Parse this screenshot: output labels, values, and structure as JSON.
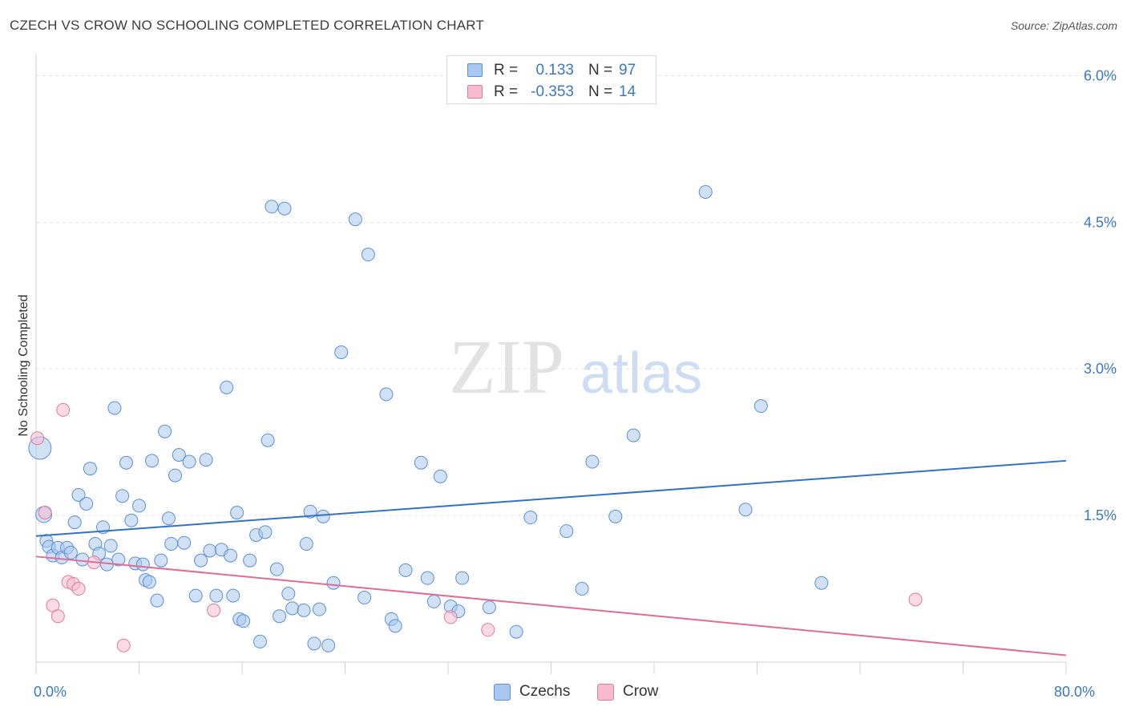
{
  "title": "CZECH VS CROW NO SCHOOLING COMPLETED CORRELATION CHART",
  "source": "Source: ZipAtlas.com",
  "watermark": {
    "zip": "ZIP",
    "atlas": "atlas"
  },
  "legend": {
    "rows": [
      {
        "series": "Czechs",
        "r_label": "R =",
        "r_value": "0.133",
        "n_label": "N =",
        "n_value": "97",
        "color": "#a9c8ef",
        "stroke": "#5b8fd6"
      },
      {
        "series": "Crow",
        "r_label": "R =",
        "r_value": "-0.353",
        "n_label": "N =",
        "n_value": "14",
        "color": "#f6bccd",
        "stroke": "#e07a9a"
      }
    ]
  },
  "chart_data": {
    "type": "scatter",
    "title": "CZECH VS CROW NO SCHOOLING COMPLETED CORRELATION CHART",
    "xlabel": "",
    "ylabel": "No Schooling Completed",
    "xlim": [
      0,
      80
    ],
    "ylim": [
      0,
      6.2
    ],
    "x_tick_labels": [
      {
        "value": 0,
        "label": "0.0%"
      },
      {
        "value": 80,
        "label": "80.0%"
      }
    ],
    "y_tick_labels": [
      {
        "value": 1.5,
        "label": "1.5%"
      },
      {
        "value": 3.0,
        "label": "3.0%"
      },
      {
        "value": 4.5,
        "label": "4.5%"
      },
      {
        "value": 6.0,
        "label": "6.0%"
      }
    ],
    "grid": true,
    "legend_position": "top-center",
    "series": [
      {
        "name": "Czechs",
        "color": "#a9c8ef",
        "stroke": "#5b8fd6",
        "trend": {
          "x": [
            0,
            80
          ],
          "y": [
            1.29,
            2.06
          ],
          "color": "#2f72c8"
        },
        "points": [
          [
            0.3,
            2.19,
            14
          ],
          [
            0.6,
            1.51,
            10
          ],
          [
            0.8,
            1.24,
            8
          ],
          [
            1.0,
            1.18,
            8
          ],
          [
            1.3,
            1.09,
            8
          ],
          [
            1.7,
            1.17,
            8
          ],
          [
            2.0,
            1.07,
            8
          ],
          [
            2.4,
            1.17,
            8
          ],
          [
            2.7,
            1.12,
            8
          ],
          [
            3.0,
            1.43,
            8
          ],
          [
            3.3,
            1.71,
            8
          ],
          [
            3.6,
            1.05,
            8
          ],
          [
            3.9,
            1.62,
            8
          ],
          [
            4.2,
            1.98,
            8
          ],
          [
            4.6,
            1.21,
            8
          ],
          [
            4.9,
            1.11,
            8
          ],
          [
            5.2,
            1.38,
            8
          ],
          [
            5.5,
            1.0,
            8
          ],
          [
            5.8,
            1.19,
            8
          ],
          [
            6.1,
            2.6,
            8
          ],
          [
            6.4,
            1.05,
            8
          ],
          [
            6.7,
            1.7,
            8
          ],
          [
            7.0,
            2.04,
            8
          ],
          [
            7.4,
            1.45,
            8
          ],
          [
            7.7,
            1.01,
            8
          ],
          [
            8.0,
            1.6,
            8
          ],
          [
            8.3,
            1.0,
            8
          ],
          [
            8.5,
            0.84,
            8
          ],
          [
            8.8,
            0.82,
            8
          ],
          [
            9.0,
            2.06,
            8
          ],
          [
            9.4,
            0.63,
            8
          ],
          [
            9.7,
            1.04,
            8
          ],
          [
            10.0,
            2.36,
            8
          ],
          [
            10.3,
            1.47,
            8
          ],
          [
            10.5,
            1.21,
            8
          ],
          [
            10.8,
            1.91,
            8
          ],
          [
            11.1,
            2.12,
            8
          ],
          [
            11.5,
            1.22,
            8
          ],
          [
            11.9,
            2.05,
            8
          ],
          [
            12.4,
            0.68,
            8
          ],
          [
            12.8,
            1.04,
            8
          ],
          [
            13.2,
            2.07,
            8
          ],
          [
            13.5,
            1.14,
            8
          ],
          [
            14.0,
            0.68,
            8
          ],
          [
            14.4,
            1.15,
            8
          ],
          [
            14.8,
            2.81,
            8
          ],
          [
            15.1,
            1.09,
            8
          ],
          [
            15.3,
            0.68,
            8
          ],
          [
            15.6,
            1.53,
            8
          ],
          [
            15.8,
            0.44,
            8
          ],
          [
            16.1,
            0.42,
            8
          ],
          [
            16.6,
            1.04,
            8
          ],
          [
            17.1,
            1.3,
            8
          ],
          [
            17.4,
            0.21,
            8
          ],
          [
            17.8,
            1.33,
            8
          ],
          [
            18.0,
            2.27,
            8
          ],
          [
            18.3,
            4.66,
            8
          ],
          [
            18.7,
            0.95,
            8
          ],
          [
            18.9,
            0.47,
            8
          ],
          [
            19.3,
            4.64,
            8
          ],
          [
            19.6,
            0.7,
            8
          ],
          [
            19.9,
            0.55,
            8
          ],
          [
            20.8,
            0.53,
            8
          ],
          [
            21.0,
            1.21,
            8
          ],
          [
            21.3,
            1.54,
            8
          ],
          [
            21.6,
            0.19,
            8
          ],
          [
            22.0,
            0.54,
            8
          ],
          [
            22.3,
            1.49,
            8
          ],
          [
            22.7,
            0.17,
            8
          ],
          [
            23.1,
            0.81,
            8
          ],
          [
            23.7,
            3.17,
            8
          ],
          [
            24.8,
            4.53,
            8
          ],
          [
            25.5,
            0.66,
            8
          ],
          [
            25.8,
            4.17,
            8
          ],
          [
            27.2,
            2.74,
            8
          ],
          [
            27.6,
            0.44,
            8
          ],
          [
            27.9,
            0.37,
            8
          ],
          [
            28.7,
            0.94,
            8
          ],
          [
            29.9,
            2.04,
            8
          ],
          [
            30.4,
            0.86,
            8
          ],
          [
            30.9,
            0.62,
            8
          ],
          [
            31.4,
            1.9,
            8
          ],
          [
            32.2,
            0.57,
            8
          ],
          [
            32.8,
            0.52,
            8
          ],
          [
            33.1,
            0.86,
            8
          ],
          [
            35.2,
            0.56,
            8
          ],
          [
            37.3,
            0.31,
            8
          ],
          [
            38.4,
            1.48,
            8
          ],
          [
            41.2,
            1.34,
            8
          ],
          [
            42.4,
            0.75,
            8
          ],
          [
            43.2,
            2.05,
            8
          ],
          [
            45.0,
            1.49,
            8
          ],
          [
            46.4,
            2.32,
            8
          ],
          [
            52.0,
            4.81,
            8
          ],
          [
            55.1,
            1.56,
            8
          ],
          [
            56.3,
            2.62,
            8
          ],
          [
            61.0,
            0.81,
            8
          ]
        ]
      },
      {
        "name": "Crow",
        "color": "#f6bccd",
        "stroke": "#e07a9a",
        "trend": {
          "x": [
            0,
            80
          ],
          "y": [
            1.08,
            0.07
          ],
          "color": "#e06c94"
        },
        "points": [
          [
            0.1,
            2.29,
            8
          ],
          [
            0.7,
            1.53,
            8
          ],
          [
            1.3,
            0.58,
            8
          ],
          [
            1.7,
            0.47,
            8
          ],
          [
            2.1,
            2.58,
            8
          ],
          [
            2.5,
            0.82,
            8
          ],
          [
            2.9,
            0.8,
            8
          ],
          [
            3.3,
            0.75,
            8
          ],
          [
            4.5,
            1.02,
            8
          ],
          [
            6.8,
            0.17,
            8
          ],
          [
            13.8,
            0.53,
            8
          ],
          [
            32.2,
            0.46,
            8
          ],
          [
            35.1,
            0.33,
            8
          ],
          [
            68.3,
            0.64,
            8
          ]
        ]
      }
    ]
  }
}
